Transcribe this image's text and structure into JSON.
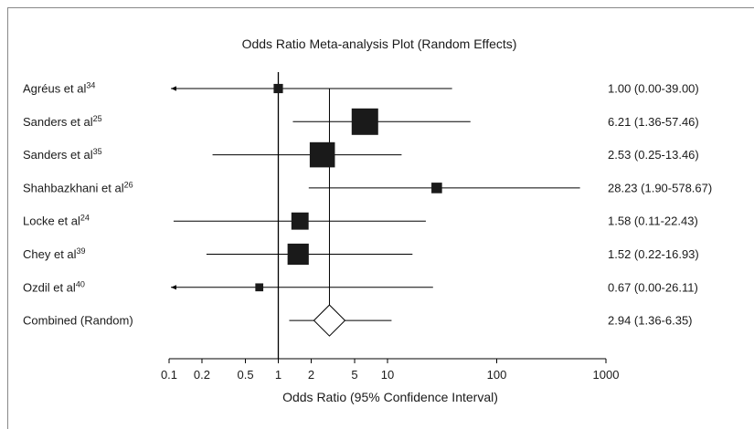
{
  "chart_data": {
    "type": "forest",
    "title": "Odds Ratio Meta-analysis Plot (Random Effects)",
    "xlabel": "Odds Ratio (95% Confidence Interval)",
    "x_scale": "log",
    "xlim": [
      0.1,
      1000
    ],
    "x_ticks": [
      {
        "value": 0.1,
        "label": "0.1"
      },
      {
        "value": 0.2,
        "label": "0.2"
      },
      {
        "value": 0.5,
        "label": "0.5"
      },
      {
        "value": 1,
        "label": "1"
      },
      {
        "value": 2,
        "label": "2"
      },
      {
        "value": 5,
        "label": "5"
      },
      {
        "value": 10,
        "label": "10"
      },
      {
        "value": 100,
        "label": "100"
      },
      {
        "value": 1000,
        "label": "1000"
      }
    ],
    "reference_line": 1,
    "studies": [
      {
        "name": "Agréus et al",
        "ref": "34",
        "or": 1.0,
        "lo": 0.0,
        "hi": 39.0,
        "ci_text": "1.00 (0.00-39.00)",
        "weight": 0.35,
        "arrow_left": true
      },
      {
        "name": "Sanders et al",
        "ref": "25",
        "or": 6.21,
        "lo": 1.36,
        "hi": 57.46,
        "ci_text": "6.21 (1.36-57.46)",
        "weight": 1.0,
        "arrow_left": false
      },
      {
        "name": "Sanders et al",
        "ref": "35",
        "or": 2.53,
        "lo": 0.25,
        "hi": 13.46,
        "ci_text": "2.53 (0.25-13.46)",
        "weight": 0.95,
        "arrow_left": false
      },
      {
        "name": "Shahbazkhani et al",
        "ref": "26",
        "or": 28.23,
        "lo": 1.9,
        "hi": 578.67,
        "ci_text": "28.23 (1.90-578.67)",
        "weight": 0.4,
        "arrow_left": false
      },
      {
        "name": "Locke et al",
        "ref": "24",
        "or": 1.58,
        "lo": 0.11,
        "hi": 22.43,
        "ci_text": "1.58 (0.11-22.43)",
        "weight": 0.65,
        "arrow_left": false
      },
      {
        "name": "Chey et al",
        "ref": "39",
        "or": 1.52,
        "lo": 0.22,
        "hi": 16.93,
        "ci_text": "1.52 (0.22-16.93)",
        "weight": 0.8,
        "arrow_left": false
      },
      {
        "name": "Ozdil et al",
        "ref": "40",
        "or": 0.67,
        "lo": 0.0,
        "hi": 26.11,
        "ci_text": "0.67 (0.00-26.11)",
        "weight": 0.3,
        "arrow_left": true
      }
    ],
    "combined": {
      "name": "Combined (Random)",
      "or": 2.94,
      "lo": 1.36,
      "hi": 6.35,
      "ci_text": "2.94 (1.36-6.35)"
    }
  }
}
